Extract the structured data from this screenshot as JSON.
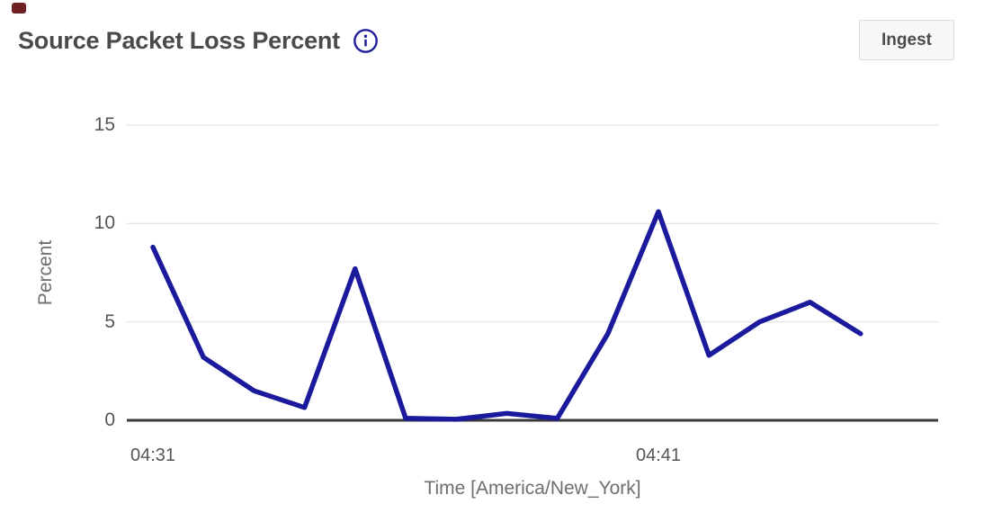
{
  "header": {
    "title": "Source Packet Loss Percent",
    "ingest_label": "Ingest"
  },
  "colors": {
    "line": "#1b1a9c",
    "info_icon": "#22219b",
    "title_text": "#4a4a4a",
    "grid": "#e7e7e7",
    "zero_axis": "#3a3a3c"
  },
  "chart_data": {
    "type": "line",
    "title": "Source Packet Loss Percent",
    "xlabel": "Time [America/New_York]",
    "ylabel": "Percent",
    "x": [
      "04:31",
      "04:32",
      "04:33",
      "04:34",
      "04:35",
      "04:36",
      "04:37",
      "04:38",
      "04:39",
      "04:40",
      "04:41",
      "04:42",
      "04:43",
      "04:44",
      "04:45"
    ],
    "values": [
      8.8,
      3.2,
      1.5,
      0.65,
      7.7,
      0.1,
      0.05,
      0.35,
      0.1,
      4.4,
      10.6,
      3.3,
      5.0,
      6.0,
      4.4
    ],
    "xticks": [
      "04:31",
      "04:41"
    ],
    "yticks": [
      0,
      5,
      10,
      15
    ],
    "ylim": [
      0,
      15
    ],
    "grid": true,
    "legend": "none",
    "line_color": "#1b1a9c"
  }
}
